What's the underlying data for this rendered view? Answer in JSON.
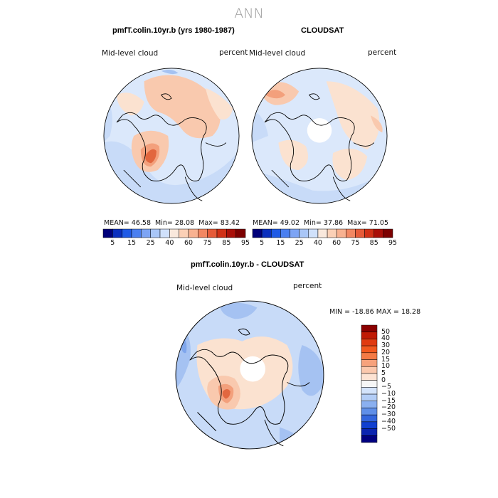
{
  "figure": {
    "season": "ANN",
    "panels": [
      {
        "title": "pmfT.colin.10yr.b (yrs 1980-1987)",
        "variable": "Mid-level cloud",
        "units": "percent",
        "mean_label": "MEAN=",
        "mean": "46.58",
        "min_label": "Min=",
        "min": "28.08",
        "max_label": "Max=",
        "max": "83.42"
      },
      {
        "title": "CLOUDSAT",
        "variable": "Mid-level cloud",
        "units": "percent",
        "mean_label": "MEAN=",
        "mean": "49.02",
        "min_label": "Min=",
        "min": "37.86",
        "max_label": "Max=",
        "max": "71.05"
      },
      {
        "title": "pmfT.colin.10yr.b - CLOUDSAT",
        "variable": "Mid-level cloud",
        "units": "percent",
        "minmax_text": "MIN = -18.86 MAX =  18.28"
      }
    ],
    "abs_colorbar": {
      "tick_labels": [
        "5",
        "15",
        "25",
        "40",
        "60",
        "75",
        "85",
        "95"
      ],
      "colors": [
        "#00007a",
        "#0a2fbe",
        "#1f5ae6",
        "#4a7ff0",
        "#7da4f4",
        "#a9c6f7",
        "#d0e1fb",
        "#f9e8dc",
        "#fbd0b6",
        "#f8b190",
        "#f28762",
        "#e65b39",
        "#d03016",
        "#a90f08",
        "#7c0000"
      ]
    },
    "diff_colorbar": {
      "tick_labels": [
        "50",
        "40",
        "30",
        "20",
        "15",
        "10",
        "5",
        "0",
        "−5",
        "−10",
        "−15",
        "−20",
        "−30",
        "−40",
        "−50"
      ],
      "colors": [
        "#8b0000",
        "#c01a05",
        "#e03a10",
        "#f2581e",
        "#f47a45",
        "#f7a27c",
        "#fbc8ad",
        "#fde3d3",
        "#f6f6f6",
        "#d3e3fb",
        "#b3cdf6",
        "#8ab0f0",
        "#5f8fe8",
        "#3366dd",
        "#1140d0",
        "#0a24b0",
        "#000080"
      ]
    },
    "map_colors": {
      "background_field": "#dbe8fb",
      "light_blue": "#c8dbf8",
      "blue": "#a5c2f2",
      "mid_blue": "#7fa6ec",
      "pale_peach": "#fbe2d0",
      "peach": "#f9c9ae",
      "salmon": "#f3a07c",
      "red_orange": "#e2673f",
      "missing": "#ffffff",
      "coast": "#000000"
    }
  }
}
